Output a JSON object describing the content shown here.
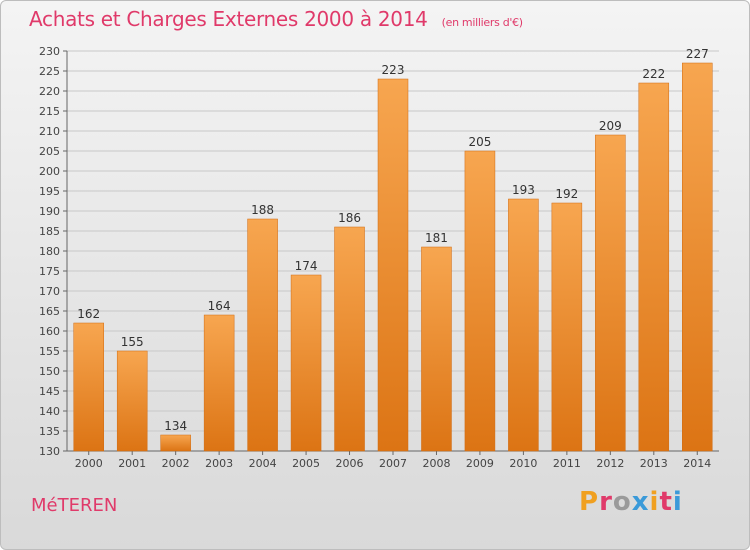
{
  "header": {
    "title": "Achats et Charges Externes 2000 à 2014",
    "unit": "(en milliers d'€)"
  },
  "footer": {
    "commune": "MéTEREN",
    "logo_text": "Proxiti",
    "logo_colors": [
      "#f0a020",
      "#e03a6a",
      "#9a9a9a",
      "#3a9ad9",
      "#f0a020",
      "#e03a6a",
      "#3a9ad9"
    ]
  },
  "chart_data": {
    "type": "bar",
    "categories": [
      "2000",
      "2001",
      "2002",
      "2003",
      "2004",
      "2005",
      "2006",
      "2007",
      "2008",
      "2009",
      "2010",
      "2011",
      "2012",
      "2013",
      "2014"
    ],
    "values": [
      162,
      155,
      134,
      164,
      188,
      174,
      186,
      223,
      181,
      205,
      193,
      192,
      209,
      222,
      227
    ],
    "title": "Achats et Charges Externes 2000 à 2014",
    "xlabel": "",
    "ylabel": "",
    "ylim": [
      130,
      230
    ],
    "ytick_step": 5,
    "grid": true,
    "bar_color": "#f0922a"
  }
}
